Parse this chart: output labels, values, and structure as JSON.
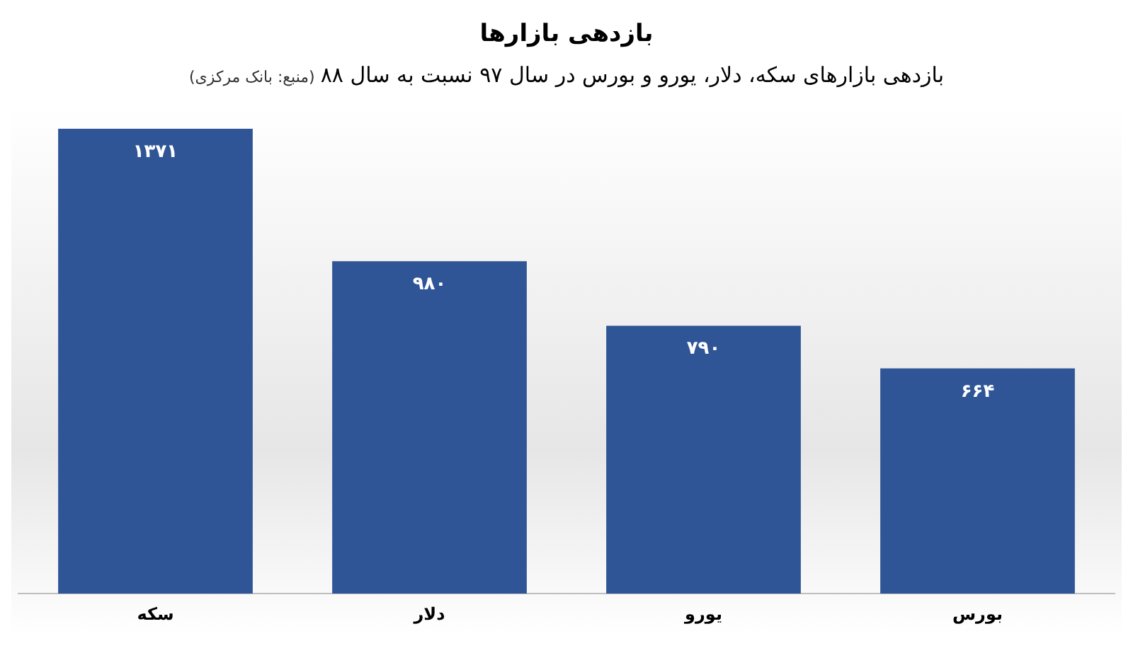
{
  "chart_data": {
    "type": "bar",
    "title": "بازدهی بازارها",
    "subtitle": "بازدهی بازارهای سکه، دلار، یورو و بورس در سال ۹۷ نسبت به سال ۸۸",
    "annotations": [
      "(منبع: بانک مرکزی)"
    ],
    "categories": [
      "سکه",
      "دلار",
      "یورو",
      "بورس"
    ],
    "values": [
      1371,
      980,
      790,
      664
    ],
    "value_labels": [
      "۱۳۷۱",
      "۹۸۰",
      "۷۹۰",
      "۶۶۴"
    ],
    "color": "#2f5597"
  }
}
